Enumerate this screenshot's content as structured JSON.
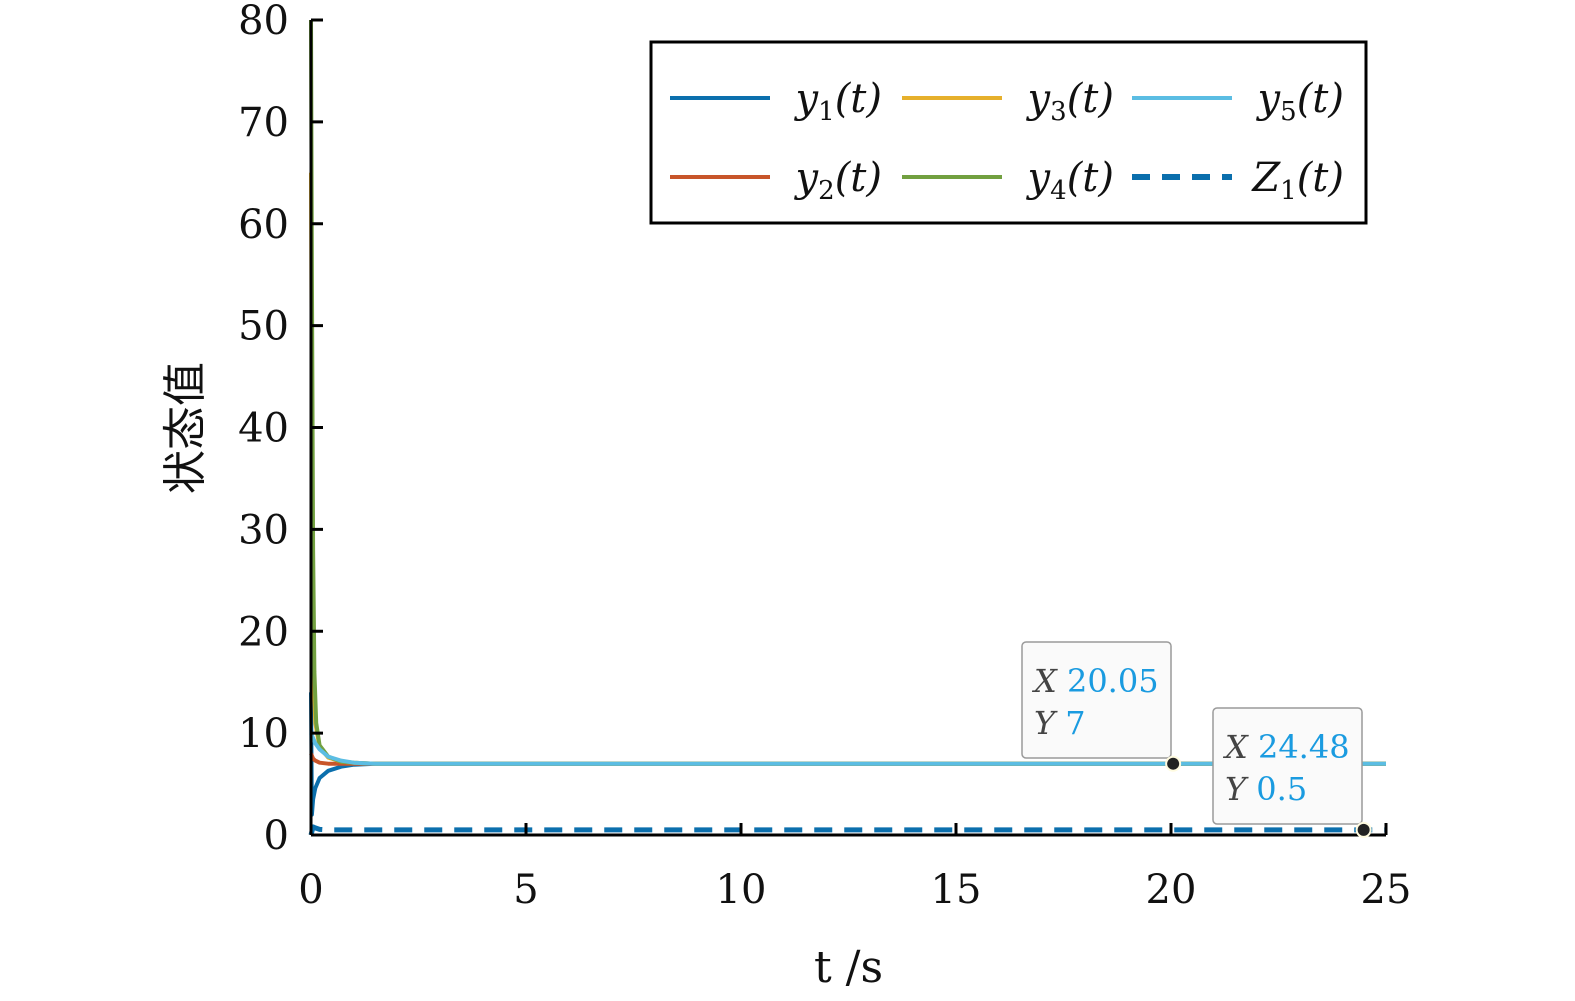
{
  "chart_data": {
    "type": "line",
    "xlabel": "t /s",
    "ylabel": "状态值",
    "xlim": [
      0,
      25
    ],
    "ylim": [
      0,
      80
    ],
    "xticks": [
      "0",
      "5",
      "10",
      "15",
      "20",
      "25"
    ],
    "yticks": [
      "0",
      "10",
      "20",
      "30",
      "40",
      "50",
      "60",
      "70",
      "80"
    ],
    "grid": false,
    "legend_position": "top-right",
    "series": [
      {
        "name": "y1(t)",
        "label_main": "y",
        "label_sub": "1",
        "label_tail": "(t)",
        "color": "#0b6fad",
        "dash": "solid",
        "x": [
          0,
          0.02,
          0.05,
          0.1,
          0.2,
          0.4,
          0.7,
          1.0,
          1.5,
          2.0,
          25
        ],
        "y": [
          14,
          2,
          3.5,
          4.6,
          5.6,
          6.3,
          6.7,
          6.9,
          7.0,
          7.0,
          7.0
        ]
      },
      {
        "name": "y2(t)",
        "label_main": "y",
        "label_sub": "2",
        "label_tail": "(t)",
        "color": "#c8552a",
        "dash": "solid",
        "x": [
          0,
          0.05,
          0.1,
          0.2,
          0.4,
          0.7,
          1.0,
          1.5,
          25
        ],
        "y": [
          8,
          7.5,
          7.3,
          7.1,
          7.0,
          7.0,
          7.0,
          7.0,
          7.0
        ]
      },
      {
        "name": "y3(t)",
        "label_main": "y",
        "label_sub": "3",
        "label_tail": "(t)",
        "color": "#e6b02c",
        "dash": "solid",
        "x": [
          0,
          0.03,
          0.06,
          0.1,
          0.2,
          0.4,
          0.7,
          1.0,
          1.5,
          25
        ],
        "y": [
          65,
          30,
          16,
          11,
          8.6,
          7.6,
          7.2,
          7.1,
          7.0,
          7.0
        ]
      },
      {
        "name": "y4(t)",
        "label_main": "y",
        "label_sub": "4",
        "label_tail": "(t)",
        "color": "#72a040",
        "dash": "solid",
        "x": [
          0,
          0.02,
          0.05,
          0.08,
          0.12,
          0.2,
          0.4,
          0.7,
          1.0,
          1.5,
          25
        ],
        "y": [
          80,
          55,
          28,
          16,
          11,
          8.8,
          7.7,
          7.2,
          7.1,
          7.0,
          7.0
        ]
      },
      {
        "name": "y5(t)",
        "label_main": "y",
        "label_sub": "5",
        "label_tail": "(t)",
        "color": "#5bbde3",
        "dash": "solid",
        "x": [
          0,
          0.1,
          0.2,
          0.4,
          0.7,
          1.0,
          1.5,
          25
        ],
        "y": [
          10,
          9,
          8.4,
          7.7,
          7.3,
          7.1,
          7.0,
          7.0
        ]
      },
      {
        "name": "Z1(t)",
        "label_main": "Z",
        "label_sub": "1",
        "label_tail": "(t)",
        "color": "#0b6fad",
        "dash": "dashed",
        "x": [
          0,
          0.05,
          0.1,
          0.2,
          0.4,
          25
        ],
        "y": [
          0,
          0.8,
          0.7,
          0.55,
          0.5,
          0.5
        ]
      }
    ],
    "annotations": [
      {
        "x_label": "X",
        "x_value": "20.05",
        "y_label": "Y",
        "y_value": "7",
        "point": [
          20.05,
          7
        ]
      },
      {
        "x_label": "X",
        "x_value": "24.48",
        "y_label": "Y",
        "y_value": "0.5",
        "point": [
          24.48,
          0.5
        ]
      }
    ]
  }
}
